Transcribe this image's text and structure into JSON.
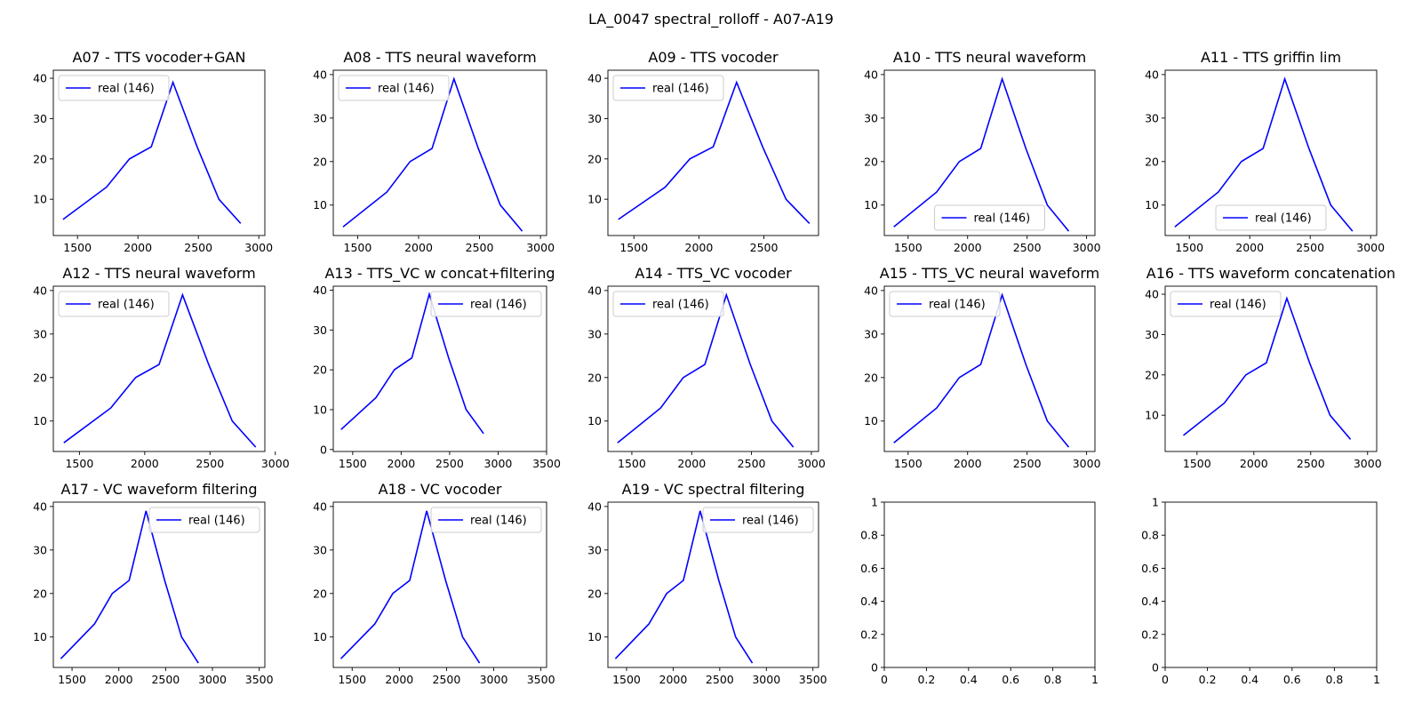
{
  "figure": {
    "suptitle": "LA_0047 spectral_rolloff - A07-A19"
  },
  "chart_data": [
    {
      "type": "line",
      "title": "A07 - TTS vocoder+GAN",
      "xlim": [
        1300,
        3050
      ],
      "ylim": [
        1,
        42
      ],
      "xticks": [
        1500,
        2000,
        2500,
        3000
      ],
      "yticks": [
        10,
        20,
        30,
        40
      ],
      "legend_placement": "upper-left",
      "series": [
        {
          "name": "real (146)",
          "color": "#0000ff",
          "x": [
            1380,
            1740,
            1930,
            2110,
            2290,
            2490,
            2670,
            2850
          ],
          "y": [
            5,
            13,
            20,
            23,
            39,
            23,
            10,
            4
          ]
        }
      ]
    },
    {
      "type": "line",
      "title": "A08 - TTS neural waveform",
      "xlim": [
        1300,
        3050
      ],
      "ylim": [
        3,
        41
      ],
      "xticks": [
        1500,
        2000,
        2500,
        3000
      ],
      "yticks": [
        10,
        20,
        30,
        40
      ],
      "legend_placement": "upper-left",
      "series": [
        {
          "name": "real (146)",
          "color": "#0000ff",
          "x": [
            1380,
            1740,
            1930,
            2110,
            2290,
            2490,
            2670,
            2850
          ],
          "y": [
            5,
            13,
            20,
            23,
            39,
            23,
            10,
            4
          ]
        }
      ]
    },
    {
      "type": "line",
      "title": "A09 - TTS vocoder",
      "xlim": [
        1300,
        2920
      ],
      "ylim": [
        1,
        42
      ],
      "xticks": [
        1500,
        2000,
        2500
      ],
      "yticks": [
        10,
        20,
        30,
        40
      ],
      "legend_placement": "upper-left",
      "series": [
        {
          "name": "real (146)",
          "color": "#0000ff",
          "x": [
            1380,
            1740,
            1930,
            2110,
            2290,
            2490,
            2670,
            2850
          ],
          "y": [
            5,
            13,
            20,
            23,
            39,
            23,
            10,
            4
          ]
        }
      ]
    },
    {
      "type": "line",
      "title": "A10 - TTS neural waveform",
      "xlim": [
        1300,
        3070
      ],
      "ylim": [
        3,
        41
      ],
      "xticks": [
        1500,
        2000,
        2500,
        3000
      ],
      "yticks": [
        10,
        20,
        30,
        40
      ],
      "legend_placement": "lower-center",
      "series": [
        {
          "name": "real (146)",
          "color": "#0000ff",
          "x": [
            1380,
            1740,
            1930,
            2110,
            2290,
            2490,
            2670,
            2850
          ],
          "y": [
            5,
            13,
            20,
            23,
            39,
            23,
            10,
            4
          ]
        }
      ]
    },
    {
      "type": "line",
      "title": "A11 - TTS griffin lim",
      "xlim": [
        1300,
        3050
      ],
      "ylim": [
        3,
        41
      ],
      "xticks": [
        1500,
        2000,
        2500,
        3000
      ],
      "yticks": [
        10,
        20,
        30,
        40
      ],
      "legend_placement": "lower-center",
      "series": [
        {
          "name": "real (146)",
          "color": "#0000ff",
          "x": [
            1380,
            1740,
            1930,
            2110,
            2290,
            2490,
            2670,
            2850
          ],
          "y": [
            5,
            13,
            20,
            23,
            39,
            23,
            10,
            4
          ]
        }
      ]
    },
    {
      "type": "line",
      "title": "A12 - TTS neural waveform",
      "xlim": [
        1300,
        2920
      ],
      "ylim": [
        3,
        41
      ],
      "xticks": [
        1500,
        2000,
        2500,
        3000
      ],
      "yticks": [
        10,
        20,
        30,
        40
      ],
      "legend_placement": "upper-left",
      "series": [
        {
          "name": "real (146)",
          "color": "#0000ff",
          "x": [
            1380,
            1740,
            1930,
            2110,
            2290,
            2490,
            2670,
            2850
          ],
          "y": [
            5,
            13,
            20,
            23,
            39,
            23,
            10,
            4
          ]
        }
      ]
    },
    {
      "type": "line",
      "title": "A13 - TTS_VC w concat+filtering",
      "xlim": [
        1300,
        3500
      ],
      "ylim": [
        -0.5,
        41
      ],
      "xticks": [
        1500,
        2000,
        2500,
        3000,
        3500
      ],
      "yticks": [
        0,
        10,
        20,
        30,
        40
      ],
      "legend_placement": "upper-right",
      "series": [
        {
          "name": "real (146)",
          "color": "#0000ff",
          "x": [
            1380,
            1740,
            1930,
            2110,
            2290,
            2490,
            2670,
            2850
          ],
          "y": [
            5,
            13,
            20,
            23,
            39,
            23,
            10,
            4
          ]
        }
      ]
    },
    {
      "type": "line",
      "title": "A14 - TTS_VC vocoder",
      "xlim": [
        1300,
        3060
      ],
      "ylim": [
        3,
        41
      ],
      "xticks": [
        1500,
        2000,
        2500,
        3000
      ],
      "yticks": [
        10,
        20,
        30,
        40
      ],
      "legend_placement": "upper-left",
      "series": [
        {
          "name": "real (146)",
          "color": "#0000ff",
          "x": [
            1380,
            1740,
            1930,
            2110,
            2290,
            2490,
            2670,
            2850
          ],
          "y": [
            5,
            13,
            20,
            23,
            39,
            23,
            10,
            4
          ]
        }
      ]
    },
    {
      "type": "line",
      "title": "A15 - TTS_VC neural waveform",
      "xlim": [
        1300,
        3070
      ],
      "ylim": [
        3,
        41
      ],
      "xticks": [
        1500,
        2000,
        2500,
        3000
      ],
      "yticks": [
        10,
        20,
        30,
        40
      ],
      "legend_placement": "upper-left",
      "series": [
        {
          "name": "real (146)",
          "color": "#0000ff",
          "x": [
            1380,
            1740,
            1930,
            2110,
            2290,
            2490,
            2670,
            2850
          ],
          "y": [
            5,
            13,
            20,
            23,
            39,
            23,
            10,
            4
          ]
        }
      ]
    },
    {
      "type": "line",
      "title": "A16 - TTS waveform concatenation",
      "xlim": [
        1220,
        3080
      ],
      "ylim": [
        1,
        42
      ],
      "xticks": [
        1500,
        2000,
        2500,
        3000
      ],
      "yticks": [
        10,
        20,
        30,
        40
      ],
      "legend_placement": "upper-left",
      "series": [
        {
          "name": "real (146)",
          "color": "#0000ff",
          "x": [
            1380,
            1740,
            1930,
            2110,
            2290,
            2490,
            2670,
            2850
          ],
          "y": [
            5,
            13,
            20,
            23,
            39,
            23,
            10,
            4
          ]
        }
      ]
    },
    {
      "type": "line",
      "title": "A17 - VC waveform filtering",
      "xlim": [
        1300,
        3560
      ],
      "ylim": [
        3,
        41
      ],
      "xticks": [
        1500,
        2000,
        2500,
        3000,
        3500
      ],
      "yticks": [
        10,
        20,
        30,
        40
      ],
      "legend_placement": "upper-right",
      "series": [
        {
          "name": "real (146)",
          "color": "#0000ff",
          "x": [
            1380,
            1740,
            1930,
            2110,
            2290,
            2490,
            2670,
            2850
          ],
          "y": [
            5,
            13,
            20,
            23,
            39,
            23,
            10,
            4
          ]
        }
      ]
    },
    {
      "type": "line",
      "title": "A18 - VC vocoder",
      "xlim": [
        1300,
        3560
      ],
      "ylim": [
        3,
        41
      ],
      "xticks": [
        1500,
        2000,
        2500,
        3000,
        3500
      ],
      "yticks": [
        10,
        20,
        30,
        40
      ],
      "legend_placement": "upper-right",
      "series": [
        {
          "name": "real (146)",
          "color": "#0000ff",
          "x": [
            1380,
            1740,
            1930,
            2110,
            2290,
            2490,
            2670,
            2850
          ],
          "y": [
            5,
            13,
            20,
            23,
            39,
            23,
            10,
            4
          ]
        }
      ]
    },
    {
      "type": "line",
      "title": "A19 - VC spectral filtering",
      "xlim": [
        1300,
        3560
      ],
      "ylim": [
        3,
        41
      ],
      "xticks": [
        1500,
        2000,
        2500,
        3000,
        3500
      ],
      "yticks": [
        10,
        20,
        30,
        40
      ],
      "legend_placement": "upper-right",
      "series": [
        {
          "name": "real (146)",
          "color": "#0000ff",
          "x": [
            1380,
            1740,
            1930,
            2110,
            2290,
            2490,
            2670,
            2850
          ],
          "y": [
            5,
            13,
            20,
            23,
            39,
            23,
            10,
            4
          ]
        }
      ]
    },
    {
      "type": "line",
      "title": "",
      "xlim": [
        0,
        1
      ],
      "ylim": [
        0,
        1
      ],
      "xticks": [
        0.0,
        0.2,
        0.4,
        0.6,
        0.8,
        1.0
      ],
      "yticks": [
        0.0,
        0.2,
        0.4,
        0.6,
        0.8,
        1.0
      ],
      "series": []
    },
    {
      "type": "line",
      "title": "",
      "xlim": [
        0,
        1
      ],
      "ylim": [
        0,
        1
      ],
      "xticks": [
        0.0,
        0.2,
        0.4,
        0.6,
        0.8,
        1.0
      ],
      "yticks": [
        0.0,
        0.2,
        0.4,
        0.6,
        0.8,
        1.0
      ],
      "series": []
    }
  ]
}
